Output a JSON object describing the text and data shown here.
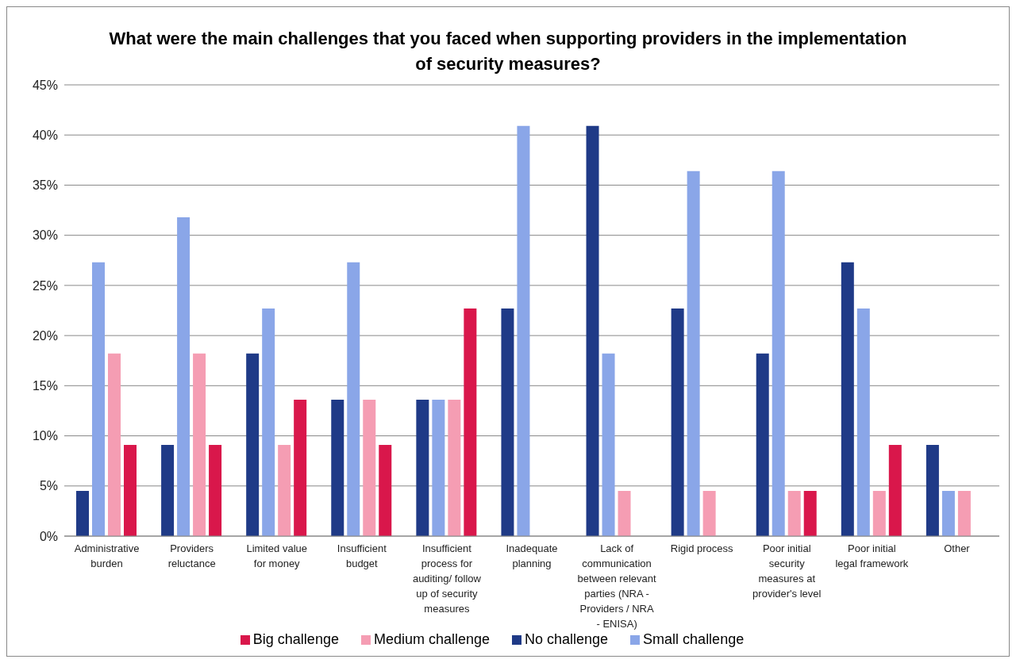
{
  "chart_data": {
    "type": "bar",
    "title": "What were the main challenges that you faced when supporting providers in the implementation of security measures?",
    "categories": [
      "Administrative burden",
      "Providers reluctance",
      "Limited value for money",
      "Insufficient budget",
      "Insufficient process for auditing/ follow up of security measures",
      "Inadequate planning",
      "Lack of communication between relevant parties (NRA - Providers / NRA - ENISA)",
      "Rigid process",
      "Poor initial security measures at provider's level",
      "Poor initial legal framework",
      "Other"
    ],
    "series": [
      {
        "name": "No challenge",
        "color": "#1f3a87",
        "values": [
          4.5,
          9.1,
          18.2,
          13.6,
          13.6,
          22.7,
          40.9,
          22.7,
          18.2,
          27.3,
          9.1
        ]
      },
      {
        "name": "Small challenge",
        "color": "#8aa6e8",
        "values": [
          27.3,
          31.8,
          22.7,
          27.3,
          13.6,
          40.9,
          18.2,
          36.4,
          36.4,
          22.7,
          4.5
        ]
      },
      {
        "name": "Medium challenge",
        "color": "#f59db3",
        "values": [
          18.2,
          18.2,
          9.1,
          13.6,
          13.6,
          0,
          4.5,
          4.5,
          4.5,
          4.5,
          4.5
        ]
      },
      {
        "name": "Big challenge",
        "color": "#d9174b",
        "values": [
          9.1,
          9.1,
          13.6,
          9.1,
          22.7,
          0,
          0,
          0,
          4.5,
          9.1,
          0
        ]
      }
    ],
    "ylim": [
      0,
      45
    ],
    "yticks": [
      {
        "value": 0,
        "label": "0%"
      },
      {
        "value": 5,
        "label": "5%"
      },
      {
        "value": 10,
        "label": "10%"
      },
      {
        "value": 15,
        "label": "15%"
      },
      {
        "value": 20,
        "label": "20%"
      },
      {
        "value": 25,
        "label": "25%"
      },
      {
        "value": 30,
        "label": "30%"
      },
      {
        "value": 35,
        "label": "35%"
      },
      {
        "value": 40,
        "label": "40%"
      },
      {
        "value": 45,
        "label": "45%"
      }
    ],
    "grid": "y",
    "legend": "bottom"
  }
}
